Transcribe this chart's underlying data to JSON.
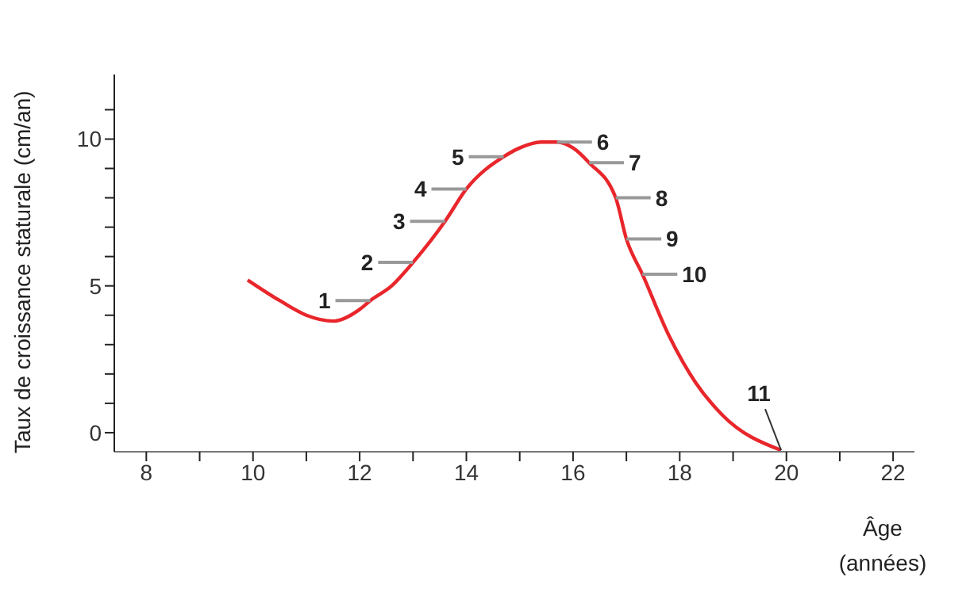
{
  "chart_data": {
    "type": "line",
    "xlabel": "Âge (années)",
    "ylabel": "Taux de croissance staturale (cm/an)",
    "series": [
      {
        "color": "#e8262b",
        "x": [
          9.9,
          10.5,
          11,
          11.5,
          12,
          12.2,
          12.6,
          13,
          13.6,
          14,
          14.7,
          15,
          15.4,
          15.7,
          16,
          16.3,
          16.8,
          17,
          17.3,
          17.8,
          18.3,
          18.8,
          19.9
        ],
        "values": [
          5.2,
          4.5,
          4.0,
          3.8,
          4.2,
          4.5,
          5.0,
          5.8,
          7.2,
          8.3,
          9.4,
          9.7,
          9.9,
          9.9,
          9.7,
          9.2,
          8.0,
          6.6,
          5.4,
          3.3,
          1.7,
          0.6,
          -0.6
        ]
      }
    ],
    "xlim": [
      7.4,
      22.4
    ],
    "xticks": [
      8,
      {
        "value": 9,
        "label": null
      },
      10,
      {
        "value": 11,
        "label": null
      },
      12,
      {
        "value": 13,
        "label": null
      },
      14,
      {
        "value": 15,
        "label": null
      },
      16,
      {
        "value": 17,
        "label": null
      },
      18,
      {
        "value": 19,
        "label": null
      },
      20,
      {
        "value": 21,
        "label": null
      },
      22
    ],
    "ylim": [
      -0.65,
      12.2
    ],
    "yticks": [
      0,
      {
        "value": 1,
        "label": null
      },
      {
        "value": 2,
        "label": null
      },
      {
        "value": 3,
        "label": null
      },
      {
        "value": 4,
        "label": null
      },
      5,
      {
        "value": 6,
        "label": null
      },
      {
        "value": 7,
        "label": null
      },
      {
        "value": 8,
        "label": null
      },
      {
        "value": 9,
        "label": null
      },
      10,
      {
        "value": 11,
        "label": null
      }
    ],
    "grid": false,
    "legend": false,
    "marker": "none",
    "line_style": "solid",
    "annotations": [
      {
        "text": "1",
        "x": 12.2,
        "y": 4.5
      },
      {
        "text": "2",
        "x": 13,
        "y": 5.8
      },
      {
        "text": "3",
        "x": 13.6,
        "y": 7.2
      },
      {
        "text": "4",
        "x": 14,
        "y": 8.3
      },
      {
        "text": "5",
        "x": 14.7,
        "y": 9.4
      },
      {
        "text": "6",
        "x": 15.7,
        "y": 9.9
      },
      {
        "text": "7",
        "x": 16.3,
        "y": 9.2
      },
      {
        "text": "8",
        "x": 16.8,
        "y": 8.0
      },
      {
        "text": "9",
        "x": 17,
        "y": 6.6
      },
      {
        "text": "10",
        "x": 17.3,
        "y": 5.4
      },
      {
        "text": "11",
        "x": 19.9,
        "y": -0.6
      }
    ]
  }
}
